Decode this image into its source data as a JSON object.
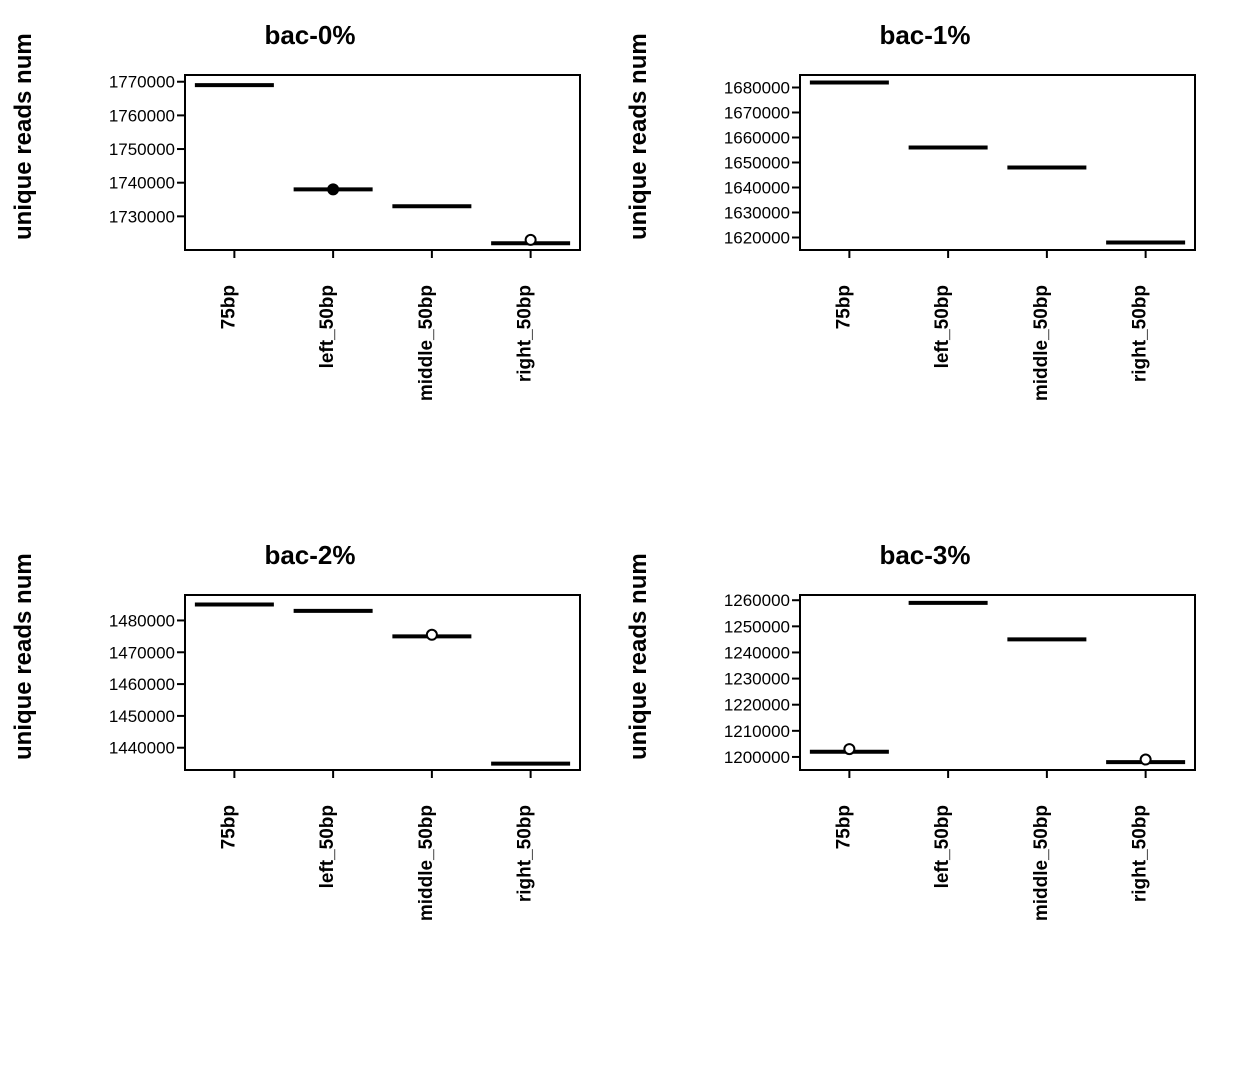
{
  "global": {
    "ylabel": "unique reads num",
    "categories": [
      "75bp",
      "left_50bp",
      "middle_50bp",
      "right_50bp"
    ],
    "background_color": "#ffffff",
    "axis_color": "#000000",
    "line_color": "#000000",
    "line_width": 4,
    "marker_stroke": "#000000",
    "marker_fill": "#ffffff",
    "marker_radius": 5,
    "title_fontsize": 26,
    "label_fontsize": 24,
    "tick_fontsize": 17
  },
  "panels": [
    {
      "title": "bac-0%",
      "yticks": [
        1730000,
        1740000,
        1750000,
        1760000,
        1770000
      ],
      "ylim": [
        1720000,
        1772000
      ],
      "values": [
        1769000,
        1738000,
        1733000,
        1722000
      ],
      "markers": [
        {
          "cat_index": 1,
          "value": 1738000,
          "fill": "#000000"
        },
        {
          "cat_index": 3,
          "value": 1723000,
          "fill": "#ffffff"
        }
      ]
    },
    {
      "title": "bac-1%",
      "yticks": [
        1620000,
        1630000,
        1640000,
        1650000,
        1660000,
        1670000,
        1680000
      ],
      "ylim": [
        1615000,
        1685000
      ],
      "values": [
        1682000,
        1656000,
        1648000,
        1618000
      ],
      "markers": []
    },
    {
      "title": "bac-2%",
      "yticks": [
        1440000,
        1450000,
        1460000,
        1470000,
        1480000
      ],
      "ylim": [
        1433000,
        1488000
      ],
      "values": [
        1485000,
        1483000,
        1475000,
        1435000
      ],
      "markers": [
        {
          "cat_index": 2,
          "value": 1475500,
          "fill": "#ffffff"
        }
      ]
    },
    {
      "title": "bac-3%",
      "yticks": [
        1200000,
        1210000,
        1220000,
        1230000,
        1240000,
        1250000,
        1260000
      ],
      "ylim": [
        1195000,
        1262000
      ],
      "values": [
        1202000,
        1259000,
        1245000,
        1198000
      ],
      "markers": [
        {
          "cat_index": 0,
          "value": 1203000,
          "fill": "#ffffff"
        },
        {
          "cat_index": 3,
          "value": 1199000,
          "fill": "#ffffff"
        }
      ]
    }
  ]
}
